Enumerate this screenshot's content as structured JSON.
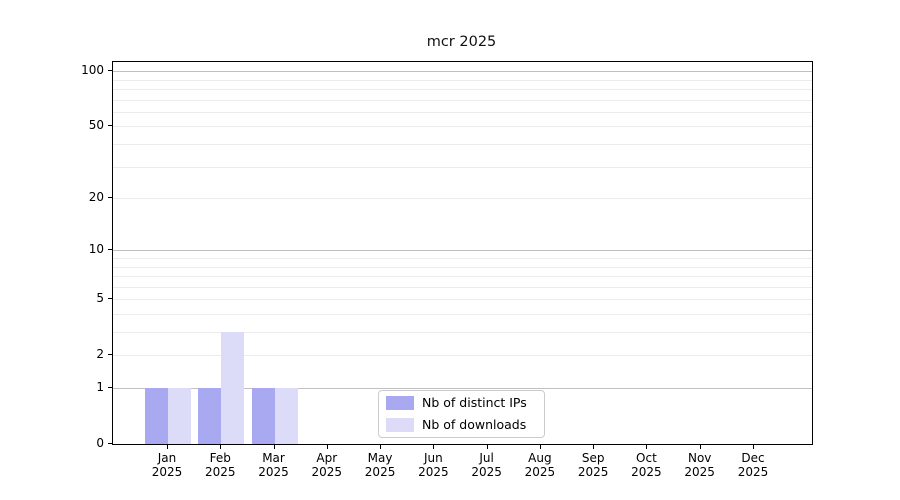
{
  "figure": {
    "title": "mcr 2025"
  },
  "chart_data": {
    "type": "bar",
    "title": "mcr 2025",
    "months": [
      "Jan",
      "Feb",
      "Mar",
      "Apr",
      "May",
      "Jun",
      "Jul",
      "Aug",
      "Sep",
      "Oct",
      "Nov",
      "Dec"
    ],
    "year": "2025",
    "series": [
      {
        "name": "Nb of distinct IPs",
        "color": "#a9a9f2",
        "values": [
          1,
          1,
          1,
          0,
          0,
          0,
          0,
          0,
          0,
          0,
          0,
          0
        ]
      },
      {
        "name": "Nb of downloads",
        "color": "#dcdcf8",
        "values": [
          1,
          3,
          1,
          0,
          0,
          0,
          0,
          0,
          0,
          0,
          0,
          0
        ]
      }
    ],
    "yscale": "log1p",
    "yticks": [
      0,
      1,
      2,
      5,
      10,
      20,
      50,
      100
    ],
    "ylim": [
      0,
      112
    ],
    "grid": true,
    "grid_minor_values": [
      2,
      3,
      4,
      5,
      6,
      7,
      8,
      9,
      20,
      30,
      40,
      50,
      60,
      70,
      80,
      90
    ],
    "grid_major_values": [
      1,
      10,
      100
    ],
    "legend_position": "lower center"
  },
  "colors": {
    "grid_major": "#c0c0c0",
    "grid_minor": "#ececec",
    "axis": "#000000",
    "background": "#ffffff"
  }
}
